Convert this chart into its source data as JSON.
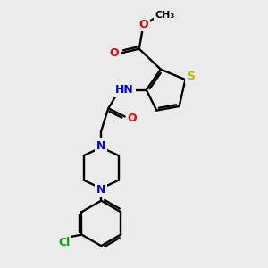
{
  "bg_color": "#ebebeb",
  "atom_colors": {
    "C": "#000000",
    "N": "#0000ee",
    "O": "#ee0000",
    "S": "#bbbb00",
    "Cl": "#00aa00",
    "H": "#555555"
  },
  "figsize": [
    3.0,
    3.0
  ],
  "dpi": 100
}
